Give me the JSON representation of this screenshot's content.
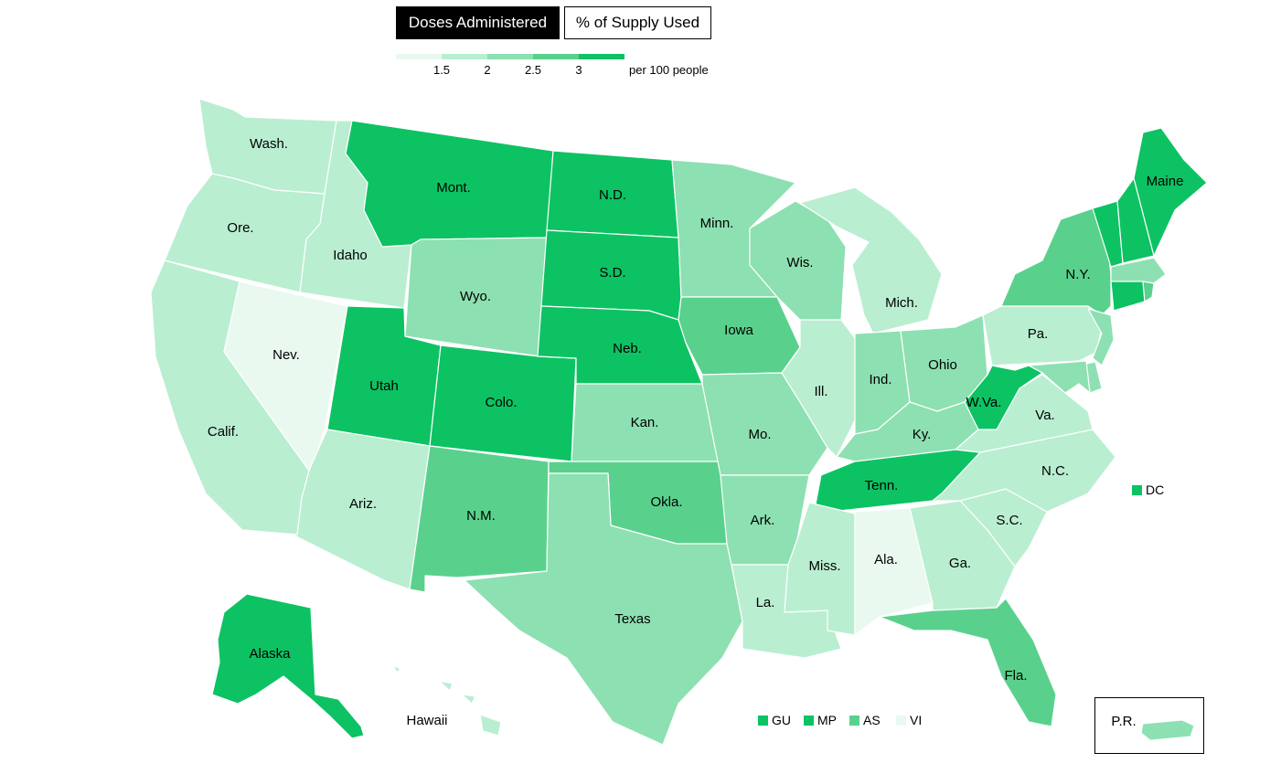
{
  "tabs": {
    "active": "Doses Administered",
    "inactive": "% of Supply Used"
  },
  "legend": {
    "ticks": [
      "1.5",
      "2",
      "2.5",
      "3"
    ],
    "unit": "per 100 people",
    "colors": [
      "#e9f9f0",
      "#b9eed1",
      "#8de0b1",
      "#59d18d",
      "#0dc263"
    ]
  },
  "states": [
    {
      "name": "Wash.",
      "bin": 1
    },
    {
      "name": "Ore.",
      "bin": 1
    },
    {
      "name": "Calif.",
      "bin": 1
    },
    {
      "name": "Idaho",
      "bin": 1
    },
    {
      "name": "Nev.",
      "bin": 0
    },
    {
      "name": "Mont.",
      "bin": 4
    },
    {
      "name": "Wyo.",
      "bin": 2
    },
    {
      "name": "Utah",
      "bin": 4
    },
    {
      "name": "Colo.",
      "bin": 4
    },
    {
      "name": "Ariz.",
      "bin": 1
    },
    {
      "name": "N.M.",
      "bin": 3
    },
    {
      "name": "N.D.",
      "bin": 4
    },
    {
      "name": "S.D.",
      "bin": 4
    },
    {
      "name": "Neb.",
      "bin": 4
    },
    {
      "name": "Kan.",
      "bin": 2
    },
    {
      "name": "Okla.",
      "bin": 3
    },
    {
      "name": "Texas",
      "bin": 2
    },
    {
      "name": "Minn.",
      "bin": 2
    },
    {
      "name": "Iowa",
      "bin": 3
    },
    {
      "name": "Mo.",
      "bin": 2
    },
    {
      "name": "Ark.",
      "bin": 2
    },
    {
      "name": "La.",
      "bin": 1
    },
    {
      "name": "Wis.",
      "bin": 2
    },
    {
      "name": "Ill.",
      "bin": 1
    },
    {
      "name": "Mich.",
      "bin": 1
    },
    {
      "name": "Ind.",
      "bin": 2
    },
    {
      "name": "Ohio",
      "bin": 2
    },
    {
      "name": "Ky.",
      "bin": 2
    },
    {
      "name": "Tenn.",
      "bin": 4
    },
    {
      "name": "Miss.",
      "bin": 1
    },
    {
      "name": "Ala.",
      "bin": 0
    },
    {
      "name": "Ga.",
      "bin": 1
    },
    {
      "name": "Fla.",
      "bin": 3
    },
    {
      "name": "S.C.",
      "bin": 1
    },
    {
      "name": "N.C.",
      "bin": 1
    },
    {
      "name": "Va.",
      "bin": 1
    },
    {
      "name": "W.Va.",
      "bin": 4
    },
    {
      "name": "Pa.",
      "bin": 1
    },
    {
      "name": "N.Y.",
      "bin": 3
    },
    {
      "name": "Maine",
      "bin": 4
    },
    {
      "name": "Alaska",
      "bin": 4
    },
    {
      "name": "Hawaii",
      "bin": 1
    },
    {
      "name": "P.R.",
      "bin": 2
    }
  ],
  "small_states": [
    {
      "id": "VT",
      "bin": 4
    },
    {
      "id": "NH",
      "bin": 4
    },
    {
      "id": "MA",
      "bin": 2
    },
    {
      "id": "CT",
      "bin": 4
    },
    {
      "id": "RI",
      "bin": 3
    },
    {
      "id": "NJ",
      "bin": 2
    },
    {
      "id": "DE",
      "bin": 2
    },
    {
      "id": "MD",
      "bin": 2
    }
  ],
  "territories": [
    {
      "label": "DC",
      "bin": 4
    },
    {
      "label": "GU",
      "bin": 4
    },
    {
      "label": "MP",
      "bin": 4
    },
    {
      "label": "AS",
      "bin": 3
    },
    {
      "label": "VI",
      "bin": 0
    }
  ]
}
